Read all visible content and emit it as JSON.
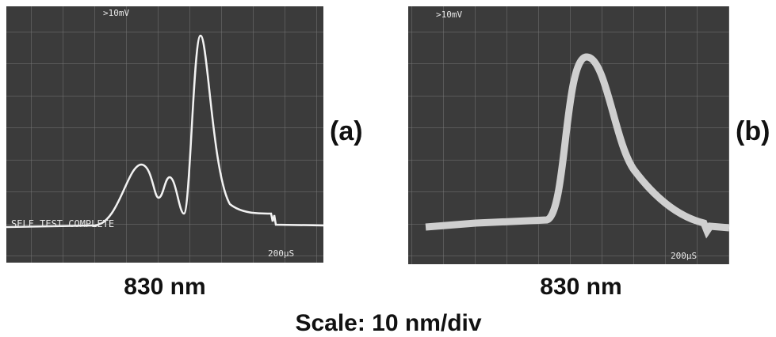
{
  "panels": [
    {
      "range_text": ">10mV",
      "time_text": "200µS",
      "status_text": "SELF TEST COMPLETE",
      "wavelength": "830 nm",
      "label": "(a)"
    },
    {
      "range_text": ">10mV",
      "time_text": "200µS",
      "wavelength": "830 nm",
      "label": "(b)"
    }
  ],
  "footer": "Scale: 10 nm/div"
}
